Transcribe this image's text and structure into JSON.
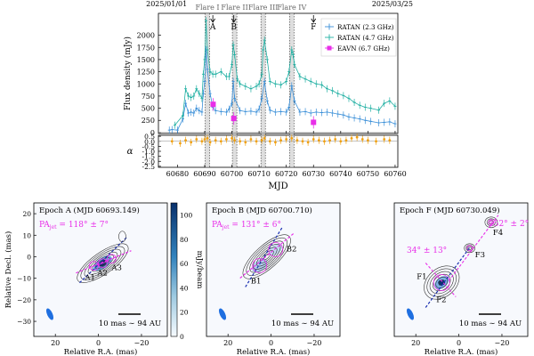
{
  "chart_data": [
    {
      "type": "line",
      "dates_top": [
        "2025/01/01",
        "2025/03/25"
      ],
      "flare_labels": [
        "Flare I",
        "Flare II",
        "Flare III",
        "Flare IV"
      ],
      "flare_mjd": [
        60691,
        60701,
        60711.5,
        60722
      ],
      "arrow_labels": [
        {
          "text": "A",
          "mjd": 60693
        },
        {
          "text": "B",
          "mjd": 60700.7
        },
        {
          "text": "F",
          "mjd": 60730
        }
      ],
      "xlabel": "MJD",
      "ylabel": "Flux density (mJy)",
      "xlim": [
        60673,
        60761
      ],
      "ylim": [
        -20,
        2450
      ],
      "x_ticks": [
        60680,
        60690,
        60700,
        60710,
        60720,
        60730,
        60740,
        60750,
        60760
      ],
      "y_ticks": [
        0,
        250,
        500,
        750,
        1000,
        1250,
        1500,
        1750,
        2000
      ],
      "legend": [
        "RATAN (2.3 GHz)",
        "RATAN (4.7 GHz)",
        "EAVN (6.7 GHz)"
      ],
      "legend_position": "top-right",
      "series": [
        {
          "name": "RATAN (2.3 GHz)",
          "color": "#3a8fd8",
          "x": [
            60677,
            60678,
            60680,
            60682,
            60683,
            60684,
            60685,
            60686,
            60687,
            60688,
            60689,
            60689.5,
            60690,
            60690.5,
            60691,
            60692,
            60693,
            60694,
            60696,
            60698,
            60699,
            60700,
            60700.5,
            60701,
            60703,
            60705,
            60707,
            60709,
            60710,
            60711,
            60712,
            60713,
            60714,
            60716,
            60718,
            60720,
            60721,
            60722,
            60723,
            60725,
            60727,
            60729,
            60731,
            60733,
            60735,
            60737,
            60739,
            60741,
            60743,
            60745,
            60747,
            60749,
            60751,
            60754,
            60756,
            60758,
            60760
          ],
          "y": [
            50,
            60,
            50,
            280,
            600,
            400,
            420,
            400,
            500,
            450,
            420,
            800,
            1050,
            1700,
            1300,
            800,
            520,
            450,
            430,
            420,
            480,
            600,
            1050,
            700,
            450,
            430,
            440,
            420,
            480,
            700,
            1050,
            650,
            460,
            420,
            430,
            420,
            520,
            960,
            650,
            420,
            430,
            400,
            420,
            410,
            420,
            400,
            380,
            360,
            320,
            300,
            280,
            250,
            230,
            200,
            210,
            220,
            180
          ]
        },
        {
          "name": "RATAN (4.7 GHz)",
          "color": "#21b0a3",
          "x": [
            60679,
            60682,
            60683,
            60684,
            60685,
            60686,
            60687,
            60688,
            60689,
            60689.5,
            60690,
            60690.5,
            60691,
            60692,
            60693,
            60694,
            60696,
            60698,
            60699,
            60700,
            60700.5,
            60701,
            60702,
            60703,
            60705,
            60707,
            60709,
            60710,
            60711,
            60711.5,
            60712,
            60713,
            60714,
            60716,
            60718,
            60720,
            60721,
            60722,
            60722.5,
            60723,
            60725,
            60727,
            60729,
            60731,
            60733,
            60735,
            60737,
            60739,
            60741,
            60743,
            60745,
            60747,
            60749,
            60751,
            60754,
            60756,
            60758,
            60760
          ],
          "y": [
            150,
            350,
            900,
            750,
            720,
            750,
            900,
            800,
            700,
            1200,
            1500,
            2300,
            1700,
            1250,
            1200,
            1200,
            1250,
            1150,
            1150,
            1400,
            1800,
            1600,
            1100,
            1000,
            950,
            900,
            950,
            1000,
            1200,
            1700,
            1900,
            1500,
            1050,
            1000,
            980,
            1050,
            1250,
            1700,
            1600,
            1400,
            1150,
            1100,
            1050,
            1000,
            980,
            900,
            860,
            800,
            760,
            700,
            620,
            560,
            520,
            500,
            460,
            600,
            650,
            540
          ]
        },
        {
          "name": "EAVN (6.7 GHz)",
          "color": "#e82ee8",
          "x": [
            60693.1,
            60700.7,
            60730.0
          ],
          "y": [
            580,
            290,
            210
          ]
        }
      ],
      "alpha_ylabel": "α",
      "alpha_ticks": [
        0.5,
        0.0,
        -0.5,
        -1.0,
        -1.5,
        -2.0,
        -2.5
      ],
      "alpha_color": "#f0a010",
      "alpha_x": [
        60678,
        60681,
        60683,
        60685,
        60687,
        60689,
        60690,
        60691,
        60692,
        60694,
        60696,
        60698,
        60700,
        60701,
        60703,
        60705,
        60707,
        60709,
        60711,
        60712,
        60714,
        60716,
        60718,
        60720,
        60722,
        60724,
        60726,
        60728,
        60730,
        60732,
        60734,
        60736,
        60738,
        60740,
        60742,
        60744,
        60746,
        60748,
        60750,
        60753,
        60756,
        60758
      ],
      "alpha_y": [
        0.0,
        -0.2,
        0.1,
        -0.1,
        0.2,
        0.0,
        0.2,
        0.3,
        -0.1,
        0.1,
        0.0,
        0.2,
        0.3,
        0.1,
        0.0,
        -0.1,
        0.2,
        0.0,
        0.1,
        0.3,
        0.0,
        -0.1,
        0.1,
        0.2,
        0.3,
        0.1,
        0.0,
        -0.1,
        0.2,
        0.1,
        0.0,
        0.1,
        0.2,
        0.0,
        0.1,
        0.3,
        0.4,
        0.2,
        0.1,
        0.0,
        0.2,
        0.1
      ]
    },
    {
      "type": "heatmap",
      "title": "Epoch A (MJD 60693.149)",
      "pa_label": "PA",
      "pa_sub": "jet",
      "pa_value": " = 118° ± 7°",
      "components": [
        "A1",
        "A2",
        "A3"
      ],
      "scalebar_label": "10 mas ∼ 94 AU",
      "xlabel": "Relative R.A. (mas)",
      "ylabel": "Relative Decl. (mas)",
      "x_ticks": [
        20,
        0,
        -20
      ],
      "y_ticks": [
        20,
        10,
        0,
        -10,
        -20,
        -30
      ],
      "colorbar_label": "mJy/beam",
      "colorbar_ticks": [
        0,
        20,
        40,
        60,
        80,
        100
      ]
    },
    {
      "type": "heatmap",
      "title": "Epoch B (MJD 60700.710)",
      "pa_label": "PA",
      "pa_sub": "jet",
      "pa_value": " = 131° ± 6°",
      "components": [
        "B1",
        "B2"
      ],
      "scalebar_label": "10 mas ∼ 94 AU",
      "xlabel": "Relative R.A. (mas)",
      "x_ticks": [
        20,
        0,
        -20
      ]
    },
    {
      "type": "heatmap",
      "title": "Epoch F (MJD 60730.049)",
      "pa_left": "34° ± 13°",
      "pa_right": "152° ± 2°",
      "components": [
        "F1",
        "F2",
        "F3",
        "F4"
      ],
      "scalebar_label": "10 mas ∼ 94 AU",
      "xlabel": "Relative R.A. (mas)",
      "x_ticks": [
        20,
        0,
        -20
      ]
    }
  ]
}
